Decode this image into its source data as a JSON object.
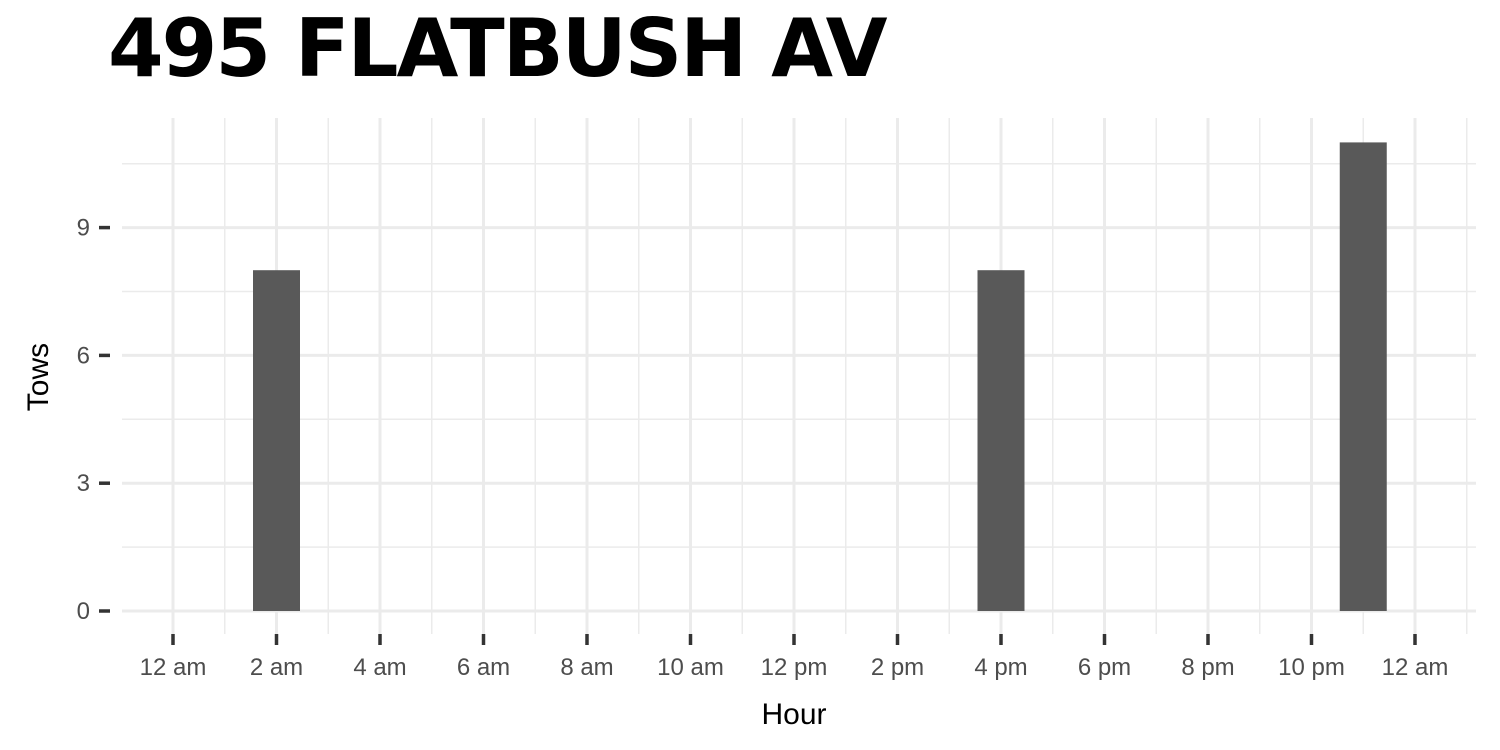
{
  "chart_data": {
    "type": "bar",
    "title": "495 FLATBUSH AV",
    "xlabel": "Hour",
    "ylabel": "Tows",
    "x_ticks": [
      {
        "hour": 0,
        "label": "12 am"
      },
      {
        "hour": 2,
        "label": "2 am"
      },
      {
        "hour": 4,
        "label": "4 am"
      },
      {
        "hour": 6,
        "label": "6 am"
      },
      {
        "hour": 8,
        "label": "8 am"
      },
      {
        "hour": 10,
        "label": "10 am"
      },
      {
        "hour": 12,
        "label": "12 pm"
      },
      {
        "hour": 14,
        "label": "2 pm"
      },
      {
        "hour": 16,
        "label": "4 pm"
      },
      {
        "hour": 18,
        "label": "6 pm"
      },
      {
        "hour": 20,
        "label": "8 pm"
      },
      {
        "hour": 22,
        "label": "10 pm"
      },
      {
        "hour": 24,
        "label": "12 am"
      }
    ],
    "y_ticks": [
      0,
      3,
      6,
      9
    ],
    "xlim": [
      -1,
      25
    ],
    "ylim": [
      0,
      11.5
    ],
    "bars": [
      {
        "hour": 2,
        "value": 8
      },
      {
        "hour": 16,
        "value": 8
      },
      {
        "hour": 23,
        "value": 11
      }
    ],
    "bar_color": "#595959",
    "grid": true
  }
}
